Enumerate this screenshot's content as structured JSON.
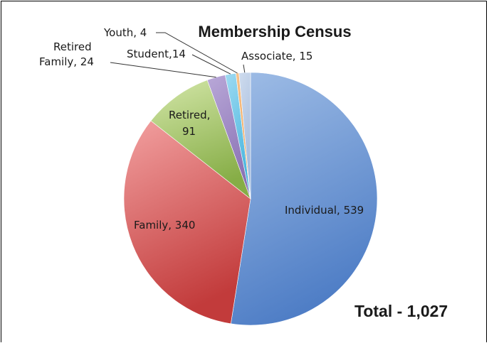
{
  "chart_data": {
    "type": "pie",
    "title": "Membership Census",
    "total_label": "Total - 1,027",
    "slices": [
      {
        "name": "Individual",
        "value": 539,
        "label": "Individual, 539",
        "color": "#4f7ec6",
        "light": "#9fbde6"
      },
      {
        "name": "Family",
        "value": 340,
        "label": "Family, 340",
        "color": "#c23b3b",
        "light": "#f2a0a0"
      },
      {
        "name": "Retired",
        "value": 91,
        "label_lines": [
          "Retired,",
          "91"
        ],
        "color": "#86ad46",
        "light": "#d3e6a8"
      },
      {
        "name": "Retired Family",
        "value": 24,
        "label_lines": [
          "Retired",
          "Family, 24"
        ],
        "color": "#8a72b4",
        "light": "#b9a8d8"
      },
      {
        "name": "Student",
        "value": 14,
        "label": "Student,14",
        "color": "#46b4dd",
        "light": "#9edaf2"
      },
      {
        "name": "Youth",
        "value": 4,
        "label": "Youth, 4",
        "color": "#f0a050",
        "light": "#f7c48e"
      },
      {
        "name": "Associate",
        "value": 15,
        "label": "Associate, 15",
        "color": "#a0b8dc",
        "light": "#cfdcee"
      }
    ]
  }
}
